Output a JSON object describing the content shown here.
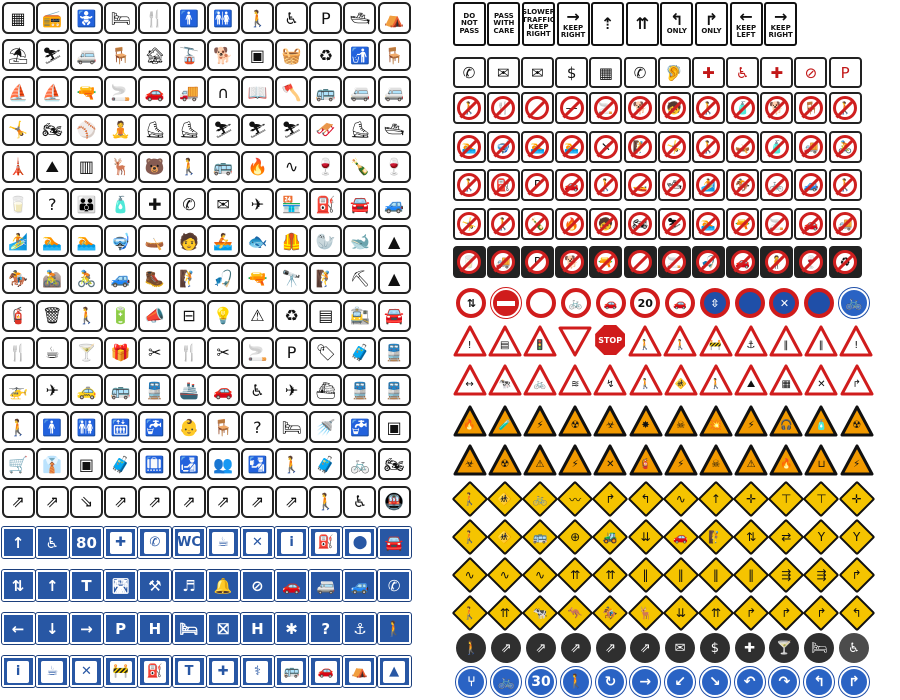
{
  "colors": {
    "info_blue": "#2857a4",
    "prohibition_red": "#cf1f1f",
    "warning_yellow": "#f5c400",
    "warning_orange": "#f29a00",
    "pictogram_black": "#111111"
  },
  "text_signs": [
    {
      "lines": [
        "DO",
        "NOT",
        "PASS"
      ]
    },
    {
      "lines": [
        "PASS",
        "WITH",
        "CARE"
      ]
    },
    {
      "lines": [
        "SLOWER",
        "TRAFFIC",
        "KEEP",
        "RIGHT"
      ]
    },
    {
      "lines": [
        "KEEP",
        "RIGHT"
      ],
      "arrow": "→"
    },
    {
      "lines": [
        ""
      ],
      "arrow": "⇡"
    },
    {
      "lines": [
        ""
      ],
      "arrow": "⇈"
    },
    {
      "lines": [
        "ONLY"
      ],
      "arrow": "↰"
    },
    {
      "lines": [
        "ONLY"
      ],
      "arrow": "↱"
    },
    {
      "lines": [
        "KEEP",
        "LEFT"
      ],
      "arrow": "←"
    },
    {
      "lines": [
        "KEEP",
        "RIGHT"
      ],
      "arrow": "→"
    }
  ],
  "blue_signs": {
    "row1": [
      "↑",
      "♿",
      "80",
      "✚",
      "✆",
      "WC",
      "☕",
      "✕",
      "i",
      "⛽",
      "⬤",
      "🚘"
    ],
    "row2": [
      "⇅",
      "↑",
      "T",
      "🛣",
      "⚒",
      "♬",
      "🔔",
      "⊘",
      "🚗",
      "🚐",
      "🚙",
      "✆"
    ],
    "row3": [
      "←",
      "↓",
      "→",
      "P",
      "H",
      "🛏",
      "⛝",
      "H",
      "✱",
      "?",
      "⚓",
      "🚶"
    ],
    "row4": [
      "i",
      "☕",
      "✕",
      "🚧",
      "⛽",
      "T",
      "✚",
      "⚕",
      "🚌",
      "🚗",
      "⛺",
      "▲"
    ]
  },
  "speed_limit_signs": [
    "20",
    "30"
  ],
  "stop_sign": "STOP"
}
